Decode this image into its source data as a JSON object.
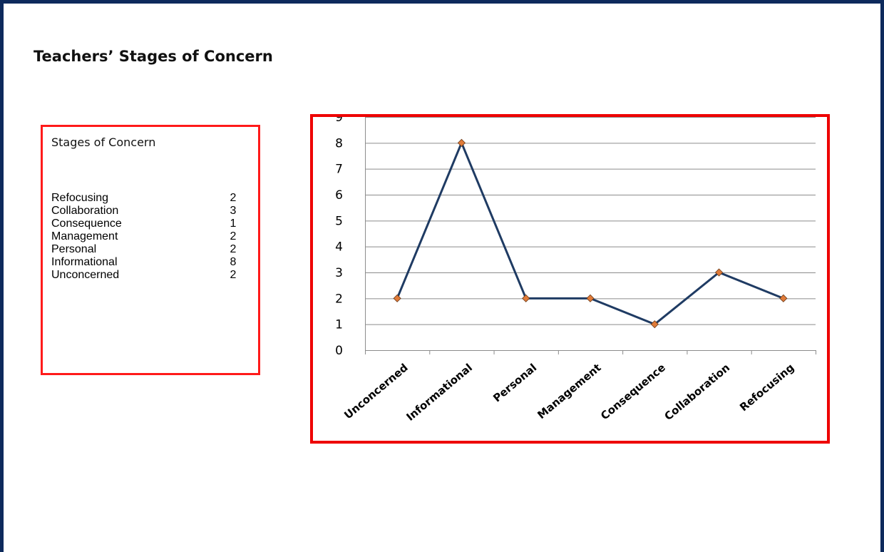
{
  "slide": {
    "title": "Teachers’ Stages of Concern"
  },
  "table": {
    "title": "Stages of Concern",
    "rows": [
      {
        "label": "Refocusing",
        "value": "2"
      },
      {
        "label": "Collaboration",
        "value": "3"
      },
      {
        "label": "Consequence",
        "value": "1"
      },
      {
        "label": "Management",
        "value": "2"
      },
      {
        "label": "Personal",
        "value": "2"
      },
      {
        "label": "Informational",
        "value": "8"
      },
      {
        "label": "Unconcerned",
        "value": "2"
      }
    ]
  },
  "colors": {
    "frame": "#0d2a5c",
    "highlight_border": "#ee0000",
    "line": "#1f3b63",
    "marker": "#e07b39",
    "gridline": "#8c8c8c"
  },
  "chart_data": {
    "type": "line",
    "title": "",
    "xlabel": "",
    "ylabel": "",
    "categories": [
      "Unconcerned",
      "Informational",
      "Personal",
      "Management",
      "Consequence",
      "Collaboration",
      "Refocusing"
    ],
    "series": [
      {
        "values": [
          2,
          8,
          2,
          2,
          1,
          3,
          2
        ]
      }
    ],
    "ylim": [
      0,
      9
    ],
    "yticks": [
      0,
      1,
      2,
      3,
      4,
      5,
      6,
      7,
      8,
      9
    ],
    "grid": true,
    "legend": "none"
  }
}
